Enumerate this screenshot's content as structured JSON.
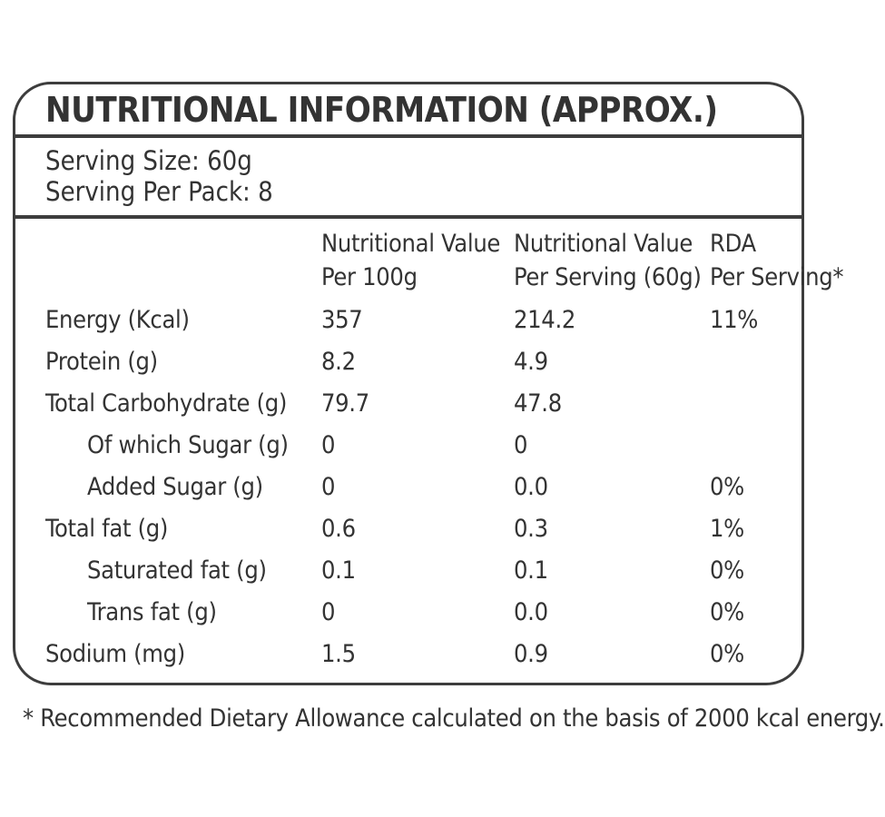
{
  "title": "NUTRITIONAL INFORMATION (APPROX.)",
  "serving": {
    "size_label": "Serving Size: 60g",
    "pack_label": "Serving Per Pack: 8"
  },
  "table": {
    "columns": {
      "col2_line1": "Nutritional Value",
      "col2_line2": "Per 100g",
      "col3_line1": "Nutritional Value",
      "col3_line2": "Per Serving (60g)",
      "col4_line1": "RDA",
      "col4_line2": "Per Serving*"
    },
    "rows": [
      {
        "label": "Energy (Kcal)",
        "per_100g": "357",
        "per_serving": "214.2",
        "rda": "11%"
      },
      {
        "label": "Protein (g)",
        "per_100g": "8.2",
        "per_serving": "4.9",
        "rda": ""
      },
      {
        "label": "Total Carbohydrate (g)",
        "per_100g": "79.7",
        "per_serving": "47.8",
        "rda": ""
      },
      {
        "label": "Of which Sugar (g)",
        "per_100g": "0",
        "per_serving": "0",
        "rda": ""
      },
      {
        "label": "Added Sugar (g)",
        "per_100g": "0",
        "per_serving": "0.0",
        "rda": "0%"
      },
      {
        "label": "Total fat (g)",
        "per_100g": "0.6",
        "per_serving": "0.3",
        "rda": "1%"
      },
      {
        "label": "Saturated fat (g)",
        "per_100g": "0.1",
        "per_serving": "0.1",
        "rda": "0%"
      },
      {
        "label": "Trans fat (g)",
        "per_100g": "0",
        "per_serving": "0.0",
        "rda": "0%"
      },
      {
        "label": "Sodium (mg)",
        "per_100g": "1.5",
        "per_serving": "0.9",
        "rda": "0%"
      }
    ]
  },
  "footnote": "* Recommended Dietary Allowance calculated on the basis of 2000 kcal energy.",
  "colors": {
    "text": "#333333",
    "border": "#3d3d3d",
    "background": "#ffffff"
  }
}
